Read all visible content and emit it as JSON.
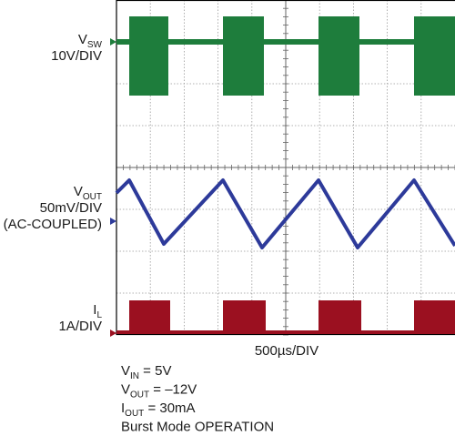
{
  "channels": [
    {
      "symbol": "V",
      "subscript": "SW",
      "lines": [
        "10V/DIV"
      ]
    },
    {
      "symbol": "V",
      "subscript": "OUT",
      "lines": [
        "50mV/DIV",
        "(AC-COUPLED)"
      ]
    },
    {
      "symbol": "I",
      "subscript": "L",
      "lines": [
        "1A/DIV"
      ]
    }
  ],
  "timebase": "500µs/DIV",
  "conditions": [
    {
      "symbol": "V",
      "subscript": "IN",
      "text": " = 5V"
    },
    {
      "symbol": "V",
      "subscript": "OUT",
      "text": " = –12V"
    },
    {
      "symbol": "I",
      "subscript": "OUT",
      "text": " = 30mA"
    },
    {
      "symbol": "Burst Mode OPERATION",
      "subscript": null,
      "text": null
    }
  ]
}
